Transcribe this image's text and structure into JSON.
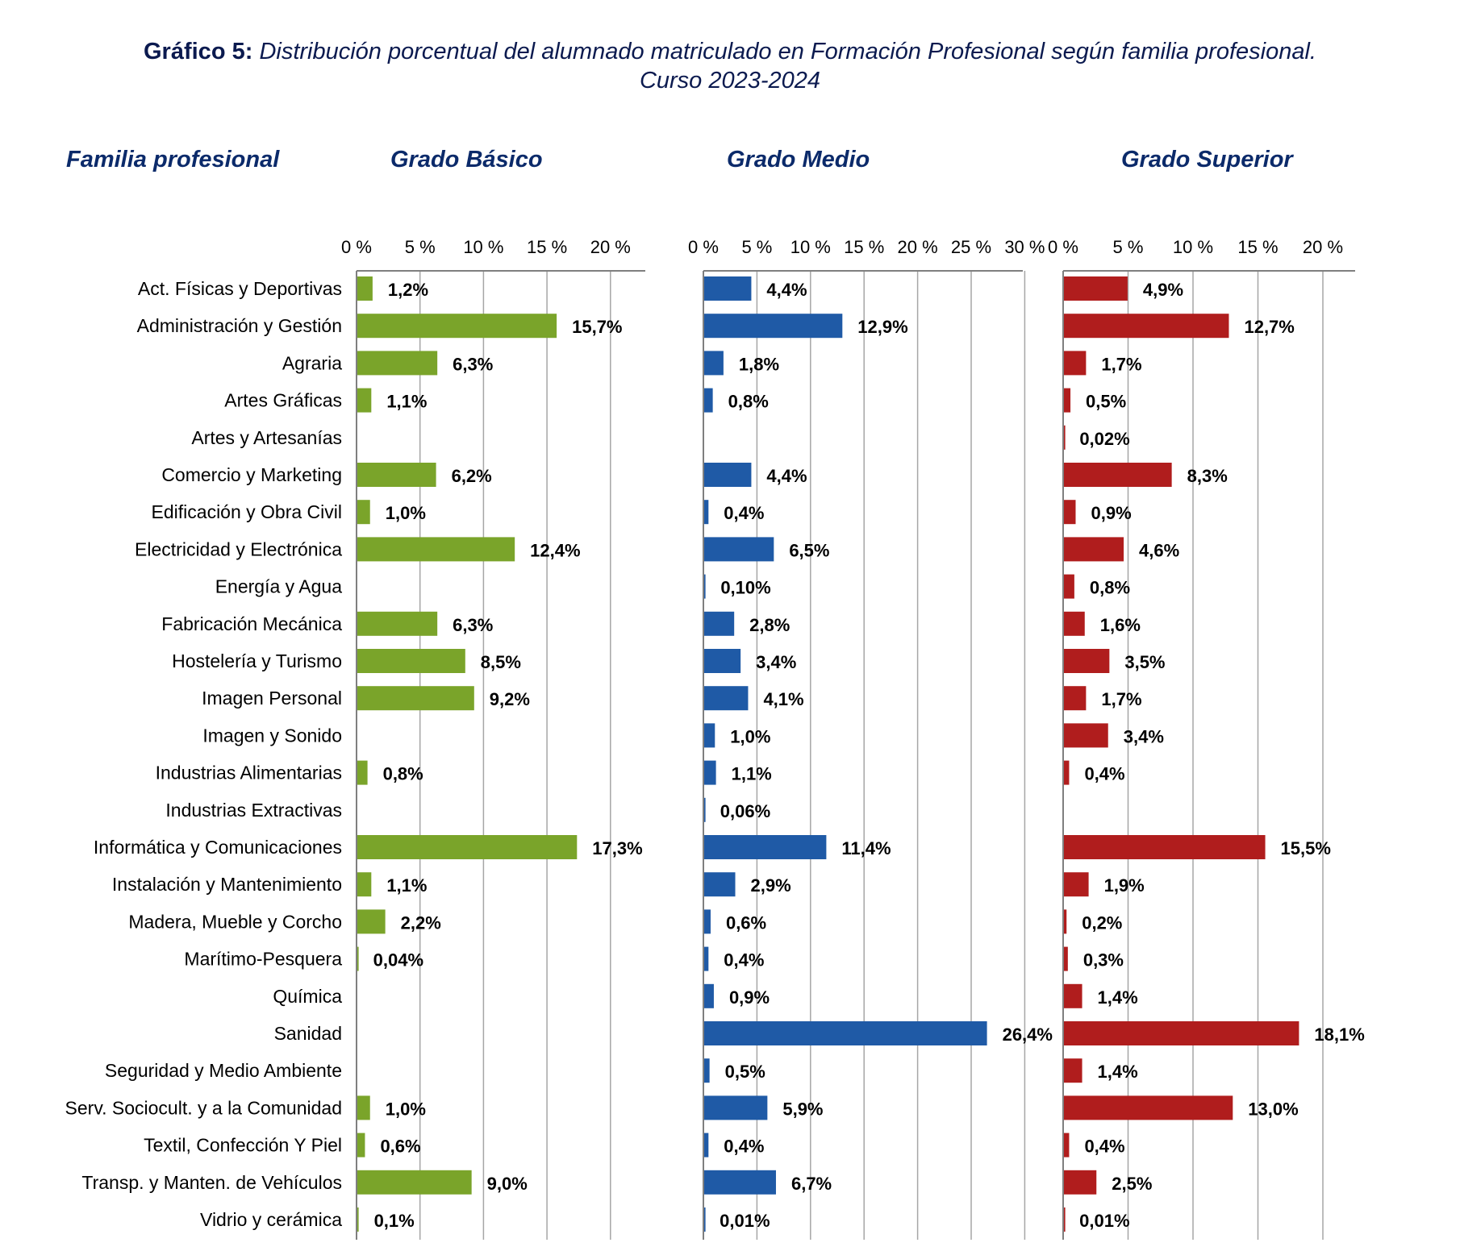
{
  "title": {
    "lead": "Gráfico 5:",
    "line1": "Distribución porcentual del alumnado matriculado en Formación Profesional según familia profesional.",
    "line2": "Curso 2023-2024"
  },
  "headers": {
    "familia": "Familia profesional",
    "basico": "Grado Básico",
    "medio": "Grado Medio",
    "superior": "Grado Superior"
  },
  "chart_data": {
    "type": "bar",
    "orientation": "horizontal",
    "categories": [
      "Act. Físicas y Deportivas",
      "Administración y Gestión",
      "Agraria",
      "Artes Gráficas",
      "Artes y Artesanías",
      "Comercio y Marketing",
      "Edificación y Obra Civil",
      "Electricidad y Electrónica",
      "Energía y Agua",
      "Fabricación Mecánica",
      "Hostelería y Turismo",
      "Imagen Personal",
      "Imagen y Sonido",
      "Industrias Alimentarias",
      "Industrias Extractivas",
      "Informática y Comunicaciones",
      "Instalación y Mantenimiento",
      "Madera, Mueble y Corcho",
      "Marítimo-Pesquera",
      "Química",
      "Sanidad",
      "Seguridad y Medio Ambiente",
      "Serv. Sociocult. y a la Comunidad",
      "Textil, Confección Y Piel",
      "Transp. y Manten. de Vehículos",
      "Vidrio y cerámica"
    ],
    "panels": [
      {
        "key": "basico",
        "color": "#7aa42a",
        "xlim": [
          0,
          20
        ],
        "ticks": [
          "0 %",
          "5 %",
          "10 %",
          "15 %",
          "20 %"
        ],
        "values": [
          1.2,
          15.7,
          6.3,
          1.1,
          null,
          6.2,
          1.0,
          12.4,
          null,
          6.3,
          8.5,
          9.2,
          null,
          0.8,
          null,
          17.3,
          1.1,
          2.2,
          0.04,
          null,
          null,
          null,
          1.0,
          0.6,
          9.0,
          0.1
        ],
        "labels": [
          "1,2%",
          "15,7%",
          "6,3%",
          "1,1%",
          "",
          "6,2%",
          "1,0%",
          "12,4%",
          "",
          "6,3%",
          "8,5%",
          "9,2%",
          "",
          "0,8%",
          "",
          "17,3%",
          "1,1%",
          "2,2%",
          "0,04%",
          "",
          "",
          "",
          "1,0%",
          "0,6%",
          "9,0%",
          "0,1%"
        ]
      },
      {
        "key": "medio",
        "color": "#1f5aa6",
        "xlim": [
          0,
          30
        ],
        "ticks": [
          "0 %",
          "5 %",
          "10 %",
          "15 %",
          "20 %",
          "25 %",
          "30 %"
        ],
        "values": [
          4.4,
          12.9,
          1.8,
          0.8,
          null,
          4.4,
          0.4,
          6.5,
          0.1,
          2.8,
          3.4,
          4.1,
          1.0,
          1.1,
          0.06,
          11.4,
          2.9,
          0.6,
          0.4,
          0.9,
          26.4,
          0.5,
          5.9,
          0.4,
          6.7,
          0.01
        ],
        "labels": [
          "4,4%",
          "12,9%",
          "1,8%",
          "0,8%",
          "",
          "4,4%",
          "0,4%",
          "6,5%",
          "0,10%",
          "2,8%",
          "3,4%",
          "4,1%",
          "1,0%",
          "1,1%",
          "0,06%",
          "11,4%",
          "2,9%",
          "0,6%",
          "0,4%",
          "0,9%",
          "26,4%",
          "0,5%",
          "5,9%",
          "0,4%",
          "6,7%",
          "0,01%"
        ]
      },
      {
        "key": "superior",
        "color": "#b01d1d",
        "xlim": [
          0,
          20
        ],
        "ticks": [
          "0 %",
          "5 %",
          "10 %",
          "15 %",
          "20 %"
        ],
        "values": [
          4.9,
          12.7,
          1.7,
          0.5,
          0.02,
          8.3,
          0.9,
          4.6,
          0.8,
          1.6,
          3.5,
          1.7,
          3.4,
          0.4,
          null,
          15.5,
          1.9,
          0.2,
          0.3,
          1.4,
          18.1,
          1.4,
          13.0,
          0.4,
          2.5,
          0.01
        ],
        "labels": [
          "4,9%",
          "12,7%",
          "1,7%",
          "0,5%",
          "0,02%",
          "8,3%",
          "0,9%",
          "4,6%",
          "0,8%",
          "1,6%",
          "3,5%",
          "1,7%",
          "3,4%",
          "0,4%",
          "",
          "15,5%",
          "1,9%",
          "0,2%",
          "0,3%",
          "1,4%",
          "18,1%",
          "1,4%",
          "13,0%",
          "0,4%",
          "2,5%",
          "0,01%"
        ]
      }
    ],
    "grid": true
  }
}
